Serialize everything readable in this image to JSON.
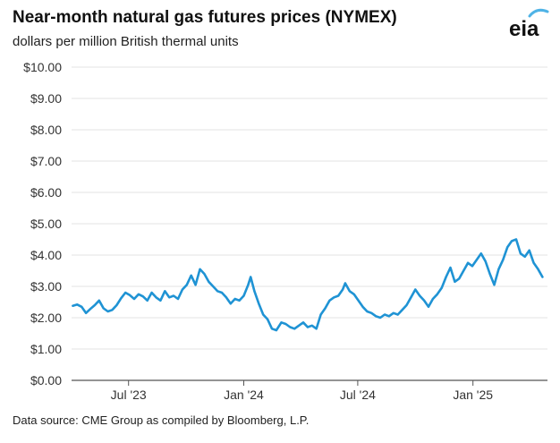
{
  "header": {
    "title": "Near-month natural gas futures prices (NYMEX)",
    "subtitle": "dollars per million British thermal units",
    "logo_text": "eia"
  },
  "footer": {
    "source": "Data source: CME Group as compiled by Bloomberg, L.P."
  },
  "colors": {
    "line": "#1f93d4",
    "grid": "#e3e3e3",
    "axis": "#555555",
    "logo_arc": "#4fb3e6"
  },
  "chart_data": {
    "type": "line",
    "title": "Near-month natural gas futures prices (NYMEX)",
    "ylabel": "dollars per million British thermal units",
    "ylim": [
      0,
      10
    ],
    "xlim": [
      "2023-04-01",
      "2025-04-30"
    ],
    "yticks": [
      {
        "value": 0,
        "label": "$0.00"
      },
      {
        "value": 1,
        "label": "$1.00"
      },
      {
        "value": 2,
        "label": "$2.00"
      },
      {
        "value": 3,
        "label": "$3.00"
      },
      {
        "value": 4,
        "label": "$4.00"
      },
      {
        "value": 5,
        "label": "$5.00"
      },
      {
        "value": 6,
        "label": "$6.00"
      },
      {
        "value": 7,
        "label": "$7.00"
      },
      {
        "value": 8,
        "label": "$8.00"
      },
      {
        "value": 9,
        "label": "$9.00"
      },
      {
        "value": 10,
        "label": "$10.00"
      }
    ],
    "xticks": [
      {
        "date": "2023-07-01",
        "label": "Jul '23"
      },
      {
        "date": "2024-01-01",
        "label": "Jan '24"
      },
      {
        "date": "2024-07-01",
        "label": "Jul '24"
      },
      {
        "date": "2025-01-01",
        "label": "Jan '25"
      }
    ],
    "grid": "horizontal",
    "series": [
      {
        "points": [
          [
            "2023-04-03",
            2.38
          ],
          [
            "2023-04-10",
            2.42
          ],
          [
            "2023-04-17",
            2.35
          ],
          [
            "2023-04-24",
            2.15
          ],
          [
            "2023-05-01",
            2.28
          ],
          [
            "2023-05-08",
            2.4
          ],
          [
            "2023-05-15",
            2.55
          ],
          [
            "2023-05-22",
            2.3
          ],
          [
            "2023-05-29",
            2.2
          ],
          [
            "2023-06-05",
            2.25
          ],
          [
            "2023-06-12",
            2.4
          ],
          [
            "2023-06-19",
            2.62
          ],
          [
            "2023-06-26",
            2.8
          ],
          [
            "2023-07-03",
            2.72
          ],
          [
            "2023-07-10",
            2.6
          ],
          [
            "2023-07-17",
            2.75
          ],
          [
            "2023-07-24",
            2.68
          ],
          [
            "2023-07-31",
            2.55
          ],
          [
            "2023-08-07",
            2.8
          ],
          [
            "2023-08-14",
            2.65
          ],
          [
            "2023-08-21",
            2.55
          ],
          [
            "2023-08-28",
            2.85
          ],
          [
            "2023-09-04",
            2.65
          ],
          [
            "2023-09-11",
            2.7
          ],
          [
            "2023-09-18",
            2.6
          ],
          [
            "2023-09-25",
            2.9
          ],
          [
            "2023-10-02",
            3.05
          ],
          [
            "2023-10-09",
            3.35
          ],
          [
            "2023-10-16",
            3.05
          ],
          [
            "2023-10-23",
            3.55
          ],
          [
            "2023-10-30",
            3.4
          ],
          [
            "2023-11-06",
            3.15
          ],
          [
            "2023-11-13",
            3.0
          ],
          [
            "2023-11-20",
            2.85
          ],
          [
            "2023-11-27",
            2.8
          ],
          [
            "2023-12-04",
            2.65
          ],
          [
            "2023-12-11",
            2.45
          ],
          [
            "2023-12-18",
            2.6
          ],
          [
            "2023-12-25",
            2.55
          ],
          [
            "2024-01-01",
            2.7
          ],
          [
            "2024-01-08",
            3.05
          ],
          [
            "2024-01-12",
            3.3
          ],
          [
            "2024-01-18",
            2.85
          ],
          [
            "2024-01-25",
            2.45
          ],
          [
            "2024-02-01",
            2.1
          ],
          [
            "2024-02-08",
            1.95
          ],
          [
            "2024-02-15",
            1.65
          ],
          [
            "2024-02-22",
            1.6
          ],
          [
            "2024-03-01",
            1.85
          ],
          [
            "2024-03-08",
            1.8
          ],
          [
            "2024-03-15",
            1.7
          ],
          [
            "2024-03-22",
            1.65
          ],
          [
            "2024-03-29",
            1.75
          ],
          [
            "2024-04-05",
            1.85
          ],
          [
            "2024-04-12",
            1.7
          ],
          [
            "2024-04-19",
            1.75
          ],
          [
            "2024-04-26",
            1.65
          ],
          [
            "2024-05-03",
            2.1
          ],
          [
            "2024-05-10",
            2.3
          ],
          [
            "2024-05-17",
            2.55
          ],
          [
            "2024-05-24",
            2.65
          ],
          [
            "2024-05-31",
            2.7
          ],
          [
            "2024-06-07",
            2.9
          ],
          [
            "2024-06-11",
            3.1
          ],
          [
            "2024-06-18",
            2.85
          ],
          [
            "2024-06-25",
            2.75
          ],
          [
            "2024-07-02",
            2.55
          ],
          [
            "2024-07-09",
            2.35
          ],
          [
            "2024-07-16",
            2.2
          ],
          [
            "2024-07-23",
            2.15
          ],
          [
            "2024-07-30",
            2.05
          ],
          [
            "2024-08-06",
            2.0
          ],
          [
            "2024-08-13",
            2.1
          ],
          [
            "2024-08-20",
            2.05
          ],
          [
            "2024-08-27",
            2.15
          ],
          [
            "2024-09-03",
            2.1
          ],
          [
            "2024-09-10",
            2.25
          ],
          [
            "2024-09-17",
            2.4
          ],
          [
            "2024-09-24",
            2.65
          ],
          [
            "2024-10-01",
            2.9
          ],
          [
            "2024-10-08",
            2.7
          ],
          [
            "2024-10-15",
            2.55
          ],
          [
            "2024-10-22",
            2.35
          ],
          [
            "2024-10-29",
            2.6
          ],
          [
            "2024-11-05",
            2.75
          ],
          [
            "2024-11-12",
            2.95
          ],
          [
            "2024-11-19",
            3.3
          ],
          [
            "2024-11-26",
            3.6
          ],
          [
            "2024-12-03",
            3.15
          ],
          [
            "2024-12-10",
            3.25
          ],
          [
            "2024-12-17",
            3.5
          ],
          [
            "2024-12-24",
            3.75
          ],
          [
            "2024-12-31",
            3.65
          ],
          [
            "2025-01-07",
            3.85
          ],
          [
            "2025-01-14",
            4.05
          ],
          [
            "2025-01-21",
            3.8
          ],
          [
            "2025-01-28",
            3.4
          ],
          [
            "2025-02-04",
            3.05
          ],
          [
            "2025-02-11",
            3.55
          ],
          [
            "2025-02-18",
            3.85
          ],
          [
            "2025-02-25",
            4.25
          ],
          [
            "2025-03-04",
            4.45
          ],
          [
            "2025-03-11",
            4.5
          ],
          [
            "2025-03-18",
            4.05
          ],
          [
            "2025-03-25",
            3.95
          ],
          [
            "2025-04-01",
            4.15
          ],
          [
            "2025-04-08",
            3.75
          ],
          [
            "2025-04-15",
            3.55
          ],
          [
            "2025-04-22",
            3.3
          ]
        ]
      }
    ]
  }
}
